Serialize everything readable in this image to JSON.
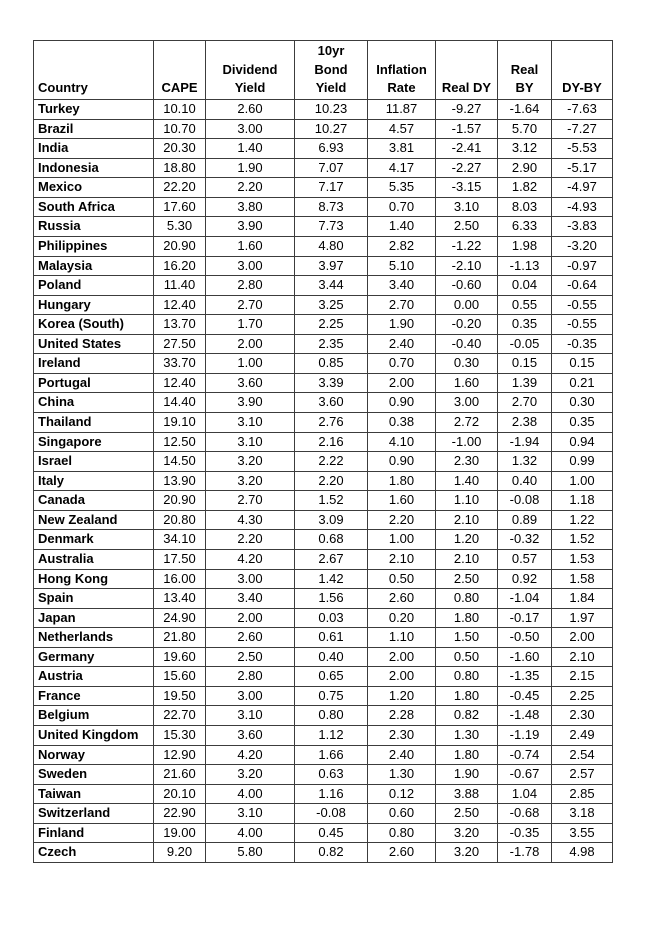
{
  "table": {
    "columns": [
      {
        "id": "country",
        "label": "Country"
      },
      {
        "id": "cape",
        "label": "CAPE"
      },
      {
        "id": "dividend_yield",
        "label": "Dividend\nYield"
      },
      {
        "id": "bond_yield_10yr",
        "label": "10yr\nBond\nYield"
      },
      {
        "id": "inflation_rate",
        "label": "Inflation\nRate"
      },
      {
        "id": "real_dy",
        "label": "Real DY"
      },
      {
        "id": "real_by",
        "label": "Real\nBY"
      },
      {
        "id": "dy_by",
        "label": "DY-BY"
      }
    ],
    "rows": [
      {
        "country": "Turkey",
        "values": [
          "10.10",
          "2.60",
          "10.23",
          "11.87",
          "-9.27",
          "-1.64",
          "-7.63"
        ]
      },
      {
        "country": "Brazil",
        "values": [
          "10.70",
          "3.00",
          "10.27",
          "4.57",
          "-1.57",
          "5.70",
          "-7.27"
        ]
      },
      {
        "country": "India",
        "values": [
          "20.30",
          "1.40",
          "6.93",
          "3.81",
          "-2.41",
          "3.12",
          "-5.53"
        ]
      },
      {
        "country": "Indonesia",
        "values": [
          "18.80",
          "1.90",
          "7.07",
          "4.17",
          "-2.27",
          "2.90",
          "-5.17"
        ]
      },
      {
        "country": "Mexico",
        "values": [
          "22.20",
          "2.20",
          "7.17",
          "5.35",
          "-3.15",
          "1.82",
          "-4.97"
        ]
      },
      {
        "country": "South Africa",
        "values": [
          "17.60",
          "3.80",
          "8.73",
          "0.70",
          "3.10",
          "8.03",
          "-4.93"
        ]
      },
      {
        "country": "Russia",
        "values": [
          "5.30",
          "3.90",
          "7.73",
          "1.40",
          "2.50",
          "6.33",
          "-3.83"
        ]
      },
      {
        "country": "Philippines",
        "values": [
          "20.90",
          "1.60",
          "4.80",
          "2.82",
          "-1.22",
          "1.98",
          "-3.20"
        ]
      },
      {
        "country": "Malaysia",
        "values": [
          "16.20",
          "3.00",
          "3.97",
          "5.10",
          "-2.10",
          "-1.13",
          "-0.97"
        ]
      },
      {
        "country": "Poland",
        "values": [
          "11.40",
          "2.80",
          "3.44",
          "3.40",
          "-0.60",
          "0.04",
          "-0.64"
        ]
      },
      {
        "country": "Hungary",
        "values": [
          "12.40",
          "2.70",
          "3.25",
          "2.70",
          "0.00",
          "0.55",
          "-0.55"
        ]
      },
      {
        "country": "Korea (South)",
        "values": [
          "13.70",
          "1.70",
          "2.25",
          "1.90",
          "-0.20",
          "0.35",
          "-0.55"
        ]
      },
      {
        "country": "United States",
        "values": [
          "27.50",
          "2.00",
          "2.35",
          "2.40",
          "-0.40",
          "-0.05",
          "-0.35"
        ]
      },
      {
        "country": "Ireland",
        "values": [
          "33.70",
          "1.00",
          "0.85",
          "0.70",
          "0.30",
          "0.15",
          "0.15"
        ]
      },
      {
        "country": "Portugal",
        "values": [
          "12.40",
          "3.60",
          "3.39",
          "2.00",
          "1.60",
          "1.39",
          "0.21"
        ]
      },
      {
        "country": "China",
        "values": [
          "14.40",
          "3.90",
          "3.60",
          "0.90",
          "3.00",
          "2.70",
          "0.30"
        ]
      },
      {
        "country": "Thailand",
        "values": [
          "19.10",
          "3.10",
          "2.76",
          "0.38",
          "2.72",
          "2.38",
          "0.35"
        ]
      },
      {
        "country": "Singapore",
        "values": [
          "12.50",
          "3.10",
          "2.16",
          "4.10",
          "-1.00",
          "-1.94",
          "0.94"
        ]
      },
      {
        "country": "Israel",
        "values": [
          "14.50",
          "3.20",
          "2.22",
          "0.90",
          "2.30",
          "1.32",
          "0.99"
        ]
      },
      {
        "country": "Italy",
        "values": [
          "13.90",
          "3.20",
          "2.20",
          "1.80",
          "1.40",
          "0.40",
          "1.00"
        ]
      },
      {
        "country": "Canada",
        "values": [
          "20.90",
          "2.70",
          "1.52",
          "1.60",
          "1.10",
          "-0.08",
          "1.18"
        ]
      },
      {
        "country": "New Zealand",
        "values": [
          "20.80",
          "4.30",
          "3.09",
          "2.20",
          "2.10",
          "0.89",
          "1.22"
        ]
      },
      {
        "country": "Denmark",
        "values": [
          "34.10",
          "2.20",
          "0.68",
          "1.00",
          "1.20",
          "-0.32",
          "1.52"
        ]
      },
      {
        "country": "Australia",
        "values": [
          "17.50",
          "4.20",
          "2.67",
          "2.10",
          "2.10",
          "0.57",
          "1.53"
        ]
      },
      {
        "country": "Hong Kong",
        "values": [
          "16.00",
          "3.00",
          "1.42",
          "0.50",
          "2.50",
          "0.92",
          "1.58"
        ]
      },
      {
        "country": "Spain",
        "values": [
          "13.40",
          "3.40",
          "1.56",
          "2.60",
          "0.80",
          "-1.04",
          "1.84"
        ]
      },
      {
        "country": "Japan",
        "values": [
          "24.90",
          "2.00",
          "0.03",
          "0.20",
          "1.80",
          "-0.17",
          "1.97"
        ]
      },
      {
        "country": "Netherlands",
        "values": [
          "21.80",
          "2.60",
          "0.61",
          "1.10",
          "1.50",
          "-0.50",
          "2.00"
        ]
      },
      {
        "country": "Germany",
        "values": [
          "19.60",
          "2.50",
          "0.40",
          "2.00",
          "0.50",
          "-1.60",
          "2.10"
        ]
      },
      {
        "country": "Austria",
        "values": [
          "15.60",
          "2.80",
          "0.65",
          "2.00",
          "0.80",
          "-1.35",
          "2.15"
        ]
      },
      {
        "country": "France",
        "values": [
          "19.50",
          "3.00",
          "0.75",
          "1.20",
          "1.80",
          "-0.45",
          "2.25"
        ]
      },
      {
        "country": "Belgium",
        "values": [
          "22.70",
          "3.10",
          "0.80",
          "2.28",
          "0.82",
          "-1.48",
          "2.30"
        ]
      },
      {
        "country": "United Kingdom",
        "values": [
          "15.30",
          "3.60",
          "1.12",
          "2.30",
          "1.30",
          "-1.19",
          "2.49"
        ]
      },
      {
        "country": "Norway",
        "values": [
          "12.90",
          "4.20",
          "1.66",
          "2.40",
          "1.80",
          "-0.74",
          "2.54"
        ]
      },
      {
        "country": "Sweden",
        "values": [
          "21.60",
          "3.20",
          "0.63",
          "1.30",
          "1.90",
          "-0.67",
          "2.57"
        ]
      },
      {
        "country": "Taiwan",
        "values": [
          "20.10",
          "4.00",
          "1.16",
          "0.12",
          "3.88",
          "1.04",
          "2.85"
        ]
      },
      {
        "country": "Switzerland",
        "values": [
          "22.90",
          "3.10",
          "-0.08",
          "0.60",
          "2.50",
          "-0.68",
          "3.18"
        ]
      },
      {
        "country": "Finland",
        "values": [
          "19.00",
          "4.00",
          "0.45",
          "0.80",
          "3.20",
          "-0.35",
          "3.55"
        ]
      },
      {
        "country": "Czech",
        "values": [
          "9.20",
          "5.80",
          "0.82",
          "2.60",
          "3.20",
          "-1.78",
          "4.98"
        ]
      }
    ]
  }
}
